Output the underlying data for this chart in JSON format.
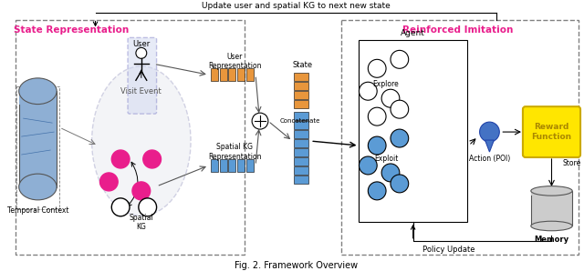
{
  "title": "Fig. 2. Framework Overview",
  "top_label": "Update user and spatial KG to next new state",
  "state_rep_label": "State Representation",
  "reinf_imit_label": "Reinforced Imitation",
  "agent_label": "Agent",
  "temporal_context": "Temporal Context",
  "user_label": "User",
  "visit_event": "Visit Event",
  "spatial_kg": "Spatial\nKG",
  "user_rep_label": "User\nRepresentation",
  "spatial_kg_rep": "Spatial KG\nRepresentation",
  "state_label": "State",
  "concatenate": "Concatenate",
  "explore_label": "Explore",
  "exploit_label": "Exploit",
  "action_poi": "Action (POI)",
  "reward_function": "Reward\nFunction",
  "store_label": "Store",
  "memory_label": "Memory",
  "policy_update": "Policy Update",
  "pink": "#E91E8C",
  "blue_light": "#5B9BD5",
  "orange": "#E8963C",
  "yellow": "#FFE600",
  "gray": "#808080",
  "dark": "#222222",
  "bg": "#FFFFFF",
  "box_blue": "#4472C4"
}
